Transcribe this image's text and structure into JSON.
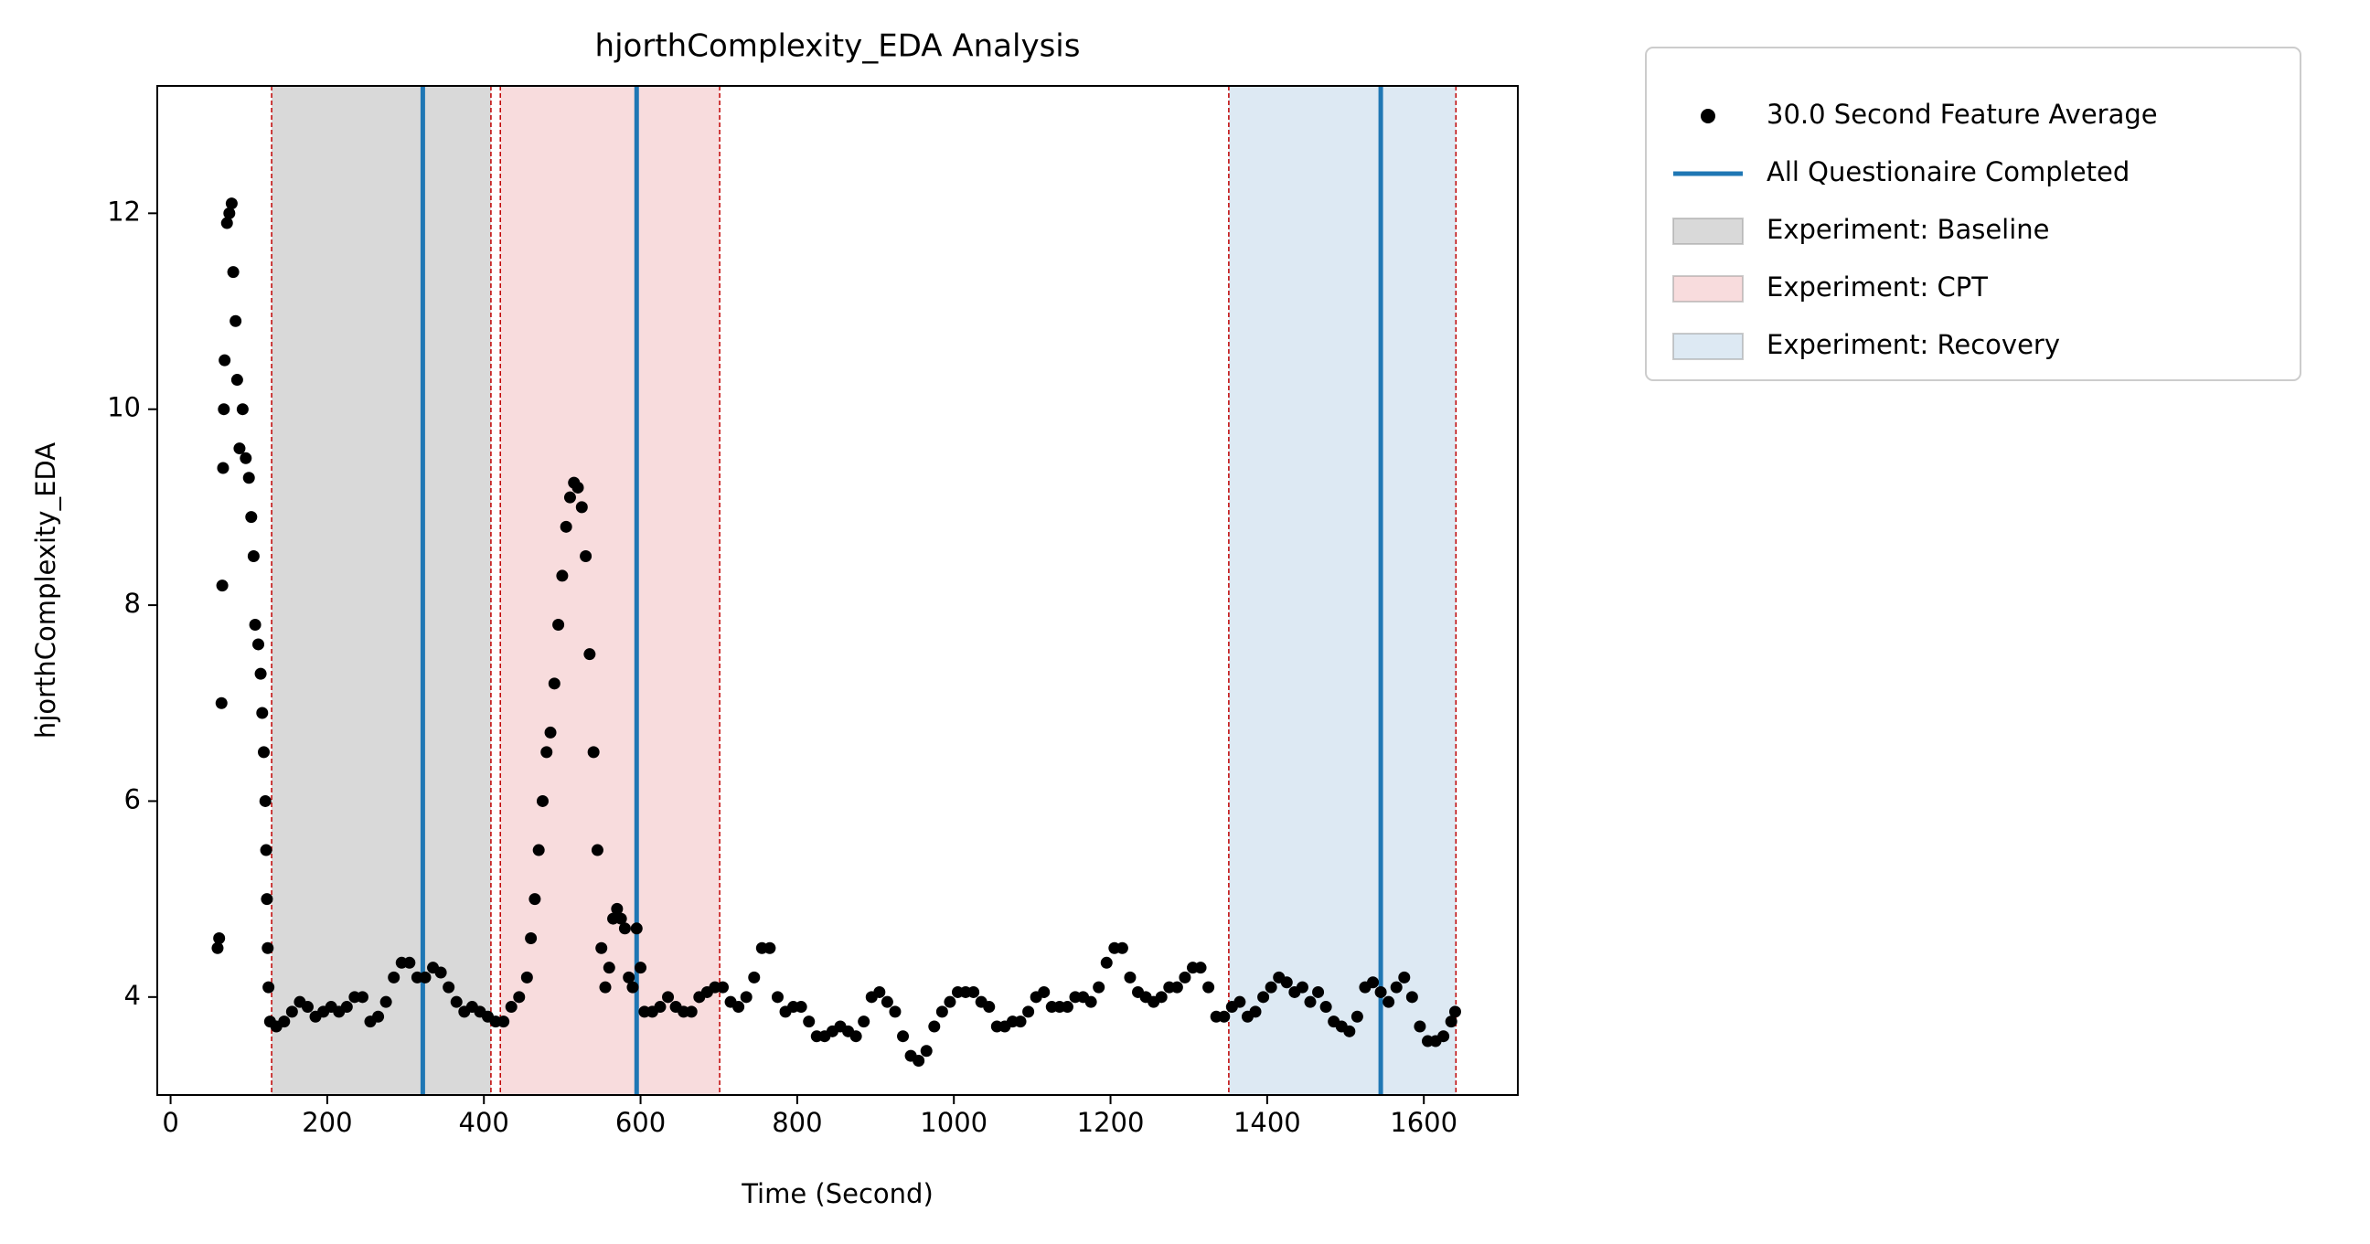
{
  "chart_data": {
    "type": "scatter",
    "title": "hjorthComplexity_EDA Analysis",
    "x_label": "Time (Second)",
    "y_label": "hjorthComplexity_EDA",
    "xlim": [
      -17,
      1720
    ],
    "ylim": [
      3.0,
      13.3
    ],
    "xticks": [
      0,
      200,
      400,
      600,
      800,
      1000,
      1200,
      1400,
      1600
    ],
    "yticks": [
      4,
      6,
      8,
      10,
      12
    ],
    "legend": "outside upper right",
    "boundary_line_color": "#c00000",
    "series": [
      {
        "name": "30.0 Second Feature Average",
        "color": "#000000",
        "x": [
          60,
          62,
          65,
          66,
          67,
          68,
          69,
          72,
          75,
          78,
          80,
          83,
          85,
          88,
          92,
          96,
          100,
          103,
          106,
          108,
          112,
          115,
          117,
          119,
          121,
          122,
          123,
          124,
          125,
          127,
          135,
          145,
          155,
          165,
          175,
          185,
          195,
          205,
          215,
          225,
          235,
          245,
          255,
          265,
          275,
          285,
          295,
          305,
          315,
          325,
          335,
          345,
          355,
          365,
          375,
          385,
          395,
          405,
          415,
          425,
          435,
          445,
          455,
          460,
          465,
          470,
          475,
          480,
          485,
          490,
          495,
          500,
          505,
          510,
          515,
          520,
          525,
          530,
          535,
          540,
          545,
          550,
          555,
          560,
          565,
          570,
          575,
          580,
          585,
          590,
          595,
          600,
          605,
          615,
          625,
          635,
          645,
          655,
          665,
          675,
          685,
          695,
          705,
          715,
          725,
          735,
          745,
          755,
          765,
          775,
          785,
          795,
          805,
          815,
          825,
          835,
          845,
          855,
          865,
          875,
          885,
          895,
          905,
          915,
          925,
          935,
          945,
          955,
          965,
          975,
          985,
          995,
          1005,
          1015,
          1025,
          1035,
          1045,
          1055,
          1065,
          1075,
          1085,
          1095,
          1105,
          1115,
          1125,
          1135,
          1145,
          1155,
          1165,
          1175,
          1185,
          1195,
          1205,
          1215,
          1225,
          1235,
          1245,
          1255,
          1265,
          1275,
          1285,
          1295,
          1305,
          1315,
          1325,
          1335,
          1345,
          1355,
          1365,
          1375,
          1385,
          1395,
          1405,
          1415,
          1425,
          1435,
          1445,
          1455,
          1465,
          1475,
          1485,
          1495,
          1505,
          1515,
          1525,
          1535,
          1545,
          1555,
          1565,
          1575,
          1585,
          1595,
          1605,
          1615,
          1625,
          1635,
          1640
        ],
        "values": [
          4.5,
          4.6,
          7.0,
          8.2,
          9.4,
          10.0,
          10.5,
          11.9,
          12.0,
          12.1,
          11.4,
          10.9,
          10.3,
          9.6,
          10.0,
          9.5,
          9.3,
          8.9,
          8.5,
          7.8,
          7.6,
          7.3,
          6.9,
          6.5,
          6.0,
          5.5,
          5.0,
          4.5,
          4.1,
          3.75,
          3.7,
          3.75,
          3.85,
          3.95,
          3.9,
          3.8,
          3.85,
          3.9,
          3.85,
          3.9,
          4.0,
          4.0,
          3.75,
          3.8,
          3.95,
          4.2,
          4.35,
          4.35,
          4.2,
          4.2,
          4.3,
          4.25,
          4.1,
          3.95,
          3.85,
          3.9,
          3.85,
          3.8,
          3.75,
          3.75,
          3.9,
          4.0,
          4.2,
          4.6,
          5.0,
          5.5,
          6.0,
          6.5,
          6.7,
          7.2,
          7.8,
          8.3,
          8.8,
          9.1,
          9.25,
          9.2,
          9.0,
          8.5,
          7.5,
          6.5,
          5.5,
          4.5,
          4.1,
          4.3,
          4.8,
          4.9,
          4.8,
          4.7,
          4.2,
          4.1,
          4.7,
          4.3,
          3.85,
          3.85,
          3.9,
          4.0,
          3.9,
          3.85,
          3.85,
          4.0,
          4.05,
          4.1,
          4.1,
          3.95,
          3.9,
          4.0,
          4.2,
          4.5,
          4.5,
          4.0,
          3.85,
          3.9,
          3.9,
          3.75,
          3.6,
          3.6,
          3.65,
          3.7,
          3.65,
          3.6,
          3.75,
          4.0,
          4.05,
          3.95,
          3.85,
          3.6,
          3.4,
          3.35,
          3.45,
          3.7,
          3.85,
          3.95,
          4.05,
          4.05,
          4.05,
          3.95,
          3.9,
          3.7,
          3.7,
          3.75,
          3.75,
          3.85,
          4.0,
          4.05,
          3.9,
          3.9,
          3.9,
          4.0,
          4.0,
          3.95,
          4.1,
          4.35,
          4.5,
          4.5,
          4.2,
          4.05,
          4.0,
          3.95,
          4.0,
          4.1,
          4.1,
          4.2,
          4.3,
          4.3,
          4.1,
          3.8,
          3.8,
          3.9,
          3.95,
          3.8,
          3.85,
          4.0,
          4.1,
          4.2,
          4.15,
          4.05,
          4.1,
          3.95,
          4.05,
          3.9,
          3.75,
          3.7,
          3.65,
          3.8,
          4.1,
          4.15,
          4.05,
          3.95,
          4.1,
          4.2,
          4.0,
          3.7,
          3.55,
          3.55,
          3.6,
          3.75,
          3.85
        ]
      }
    ],
    "vlines": {
      "name": "All Questionaire Completed",
      "color": "#1f77b4",
      "x": [
        322,
        595,
        1545
      ]
    },
    "regions": [
      {
        "name": "Experiment: Baseline",
        "color": "#d9d9d9",
        "start": 129,
        "end": 409
      },
      {
        "name": "Experiment: CPT",
        "color": "#f8dcdd",
        "start": 421,
        "end": 701
      },
      {
        "name": "Experiment: Recovery",
        "color": "#dde9f3",
        "start": 1351,
        "end": 1641
      }
    ]
  }
}
